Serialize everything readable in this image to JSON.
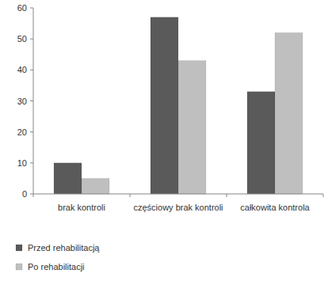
{
  "chart_data": {
    "type": "bar",
    "categories": [
      "brak kontroli",
      "częściowy brak kontroli",
      "całkowita kontrola"
    ],
    "series": [
      {
        "name": "Przed rehabilitacją",
        "color": "#5a5a5a",
        "values": [
          10,
          57,
          33
        ]
      },
      {
        "name": "Po rehabilitacji",
        "color": "#bfbfbf",
        "values": [
          5,
          43,
          52
        ]
      }
    ],
    "ylim": [
      0,
      60
    ],
    "yticks": [
      0,
      10,
      20,
      30,
      40,
      50,
      60
    ],
    "grid": false,
    "legend": "bottom-left"
  }
}
